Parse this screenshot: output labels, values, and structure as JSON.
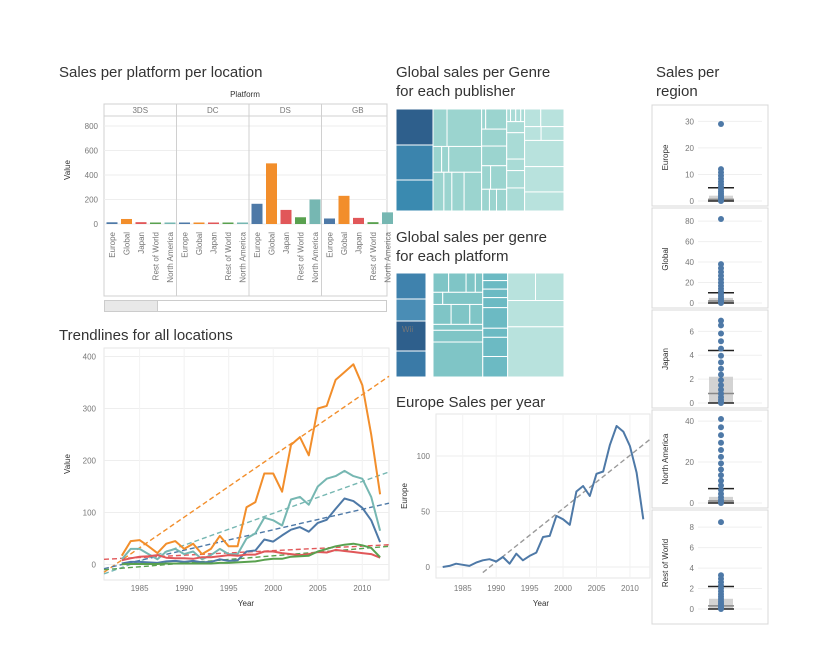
{
  "titles": {
    "bar": "Sales per platform per location",
    "tm1": "Global sales per Genre\nfor each publisher",
    "tm2": "Global sales per genre\nfor each platform",
    "trend": "Trendlines for all locations",
    "europe": "Europe Sales per year",
    "region": "Sales per\nregion"
  },
  "colors": {
    "Europe": "#4e79a7",
    "Global": "#f28e2b",
    "Japan": "#e15759",
    "Rest of World": "#59a14f",
    "North America": "#76b7b2"
  },
  "chart_data": [
    {
      "type": "bar",
      "title": "Sales per platform per location",
      "group_label": "Platform",
      "ylabel": "Value",
      "ylim": [
        0,
        800
      ],
      "yticks": [
        0,
        200,
        400,
        600,
        800
      ],
      "groups": [
        "3DS",
        "DC",
        "DS",
        "GB"
      ],
      "categories": [
        "Europe",
        "Global",
        "Japan",
        "Rest of World",
        "North America"
      ],
      "series": [
        {
          "name": "3DS",
          "values": [
            14,
            41,
            15,
            4,
            12
          ]
        },
        {
          "name": "DC",
          "values": [
            2,
            8,
            6,
            0.5,
            1
          ]
        },
        {
          "name": "DS",
          "values": [
            165,
            495,
            115,
            55,
            200
          ]
        },
        {
          "name": "GB",
          "values": [
            45,
            230,
            50,
            15,
            95
          ]
        }
      ]
    },
    {
      "type": "line",
      "title": "Trendlines for all locations",
      "xlabel": "Year",
      "ylabel": "Value",
      "xlim": [
        1981,
        2013
      ],
      "ylim": [
        -15,
        400
      ],
      "xticks": [
        1985,
        1990,
        1995,
        2000,
        2005,
        2010
      ],
      "yticks": [
        0,
        100,
        200,
        300,
        400
      ],
      "x": [
        1983,
        1984,
        1985,
        1986,
        1987,
        1988,
        1989,
        1990,
        1991,
        1992,
        1993,
        1994,
        1995,
        1996,
        1997,
        1998,
        1999,
        2000,
        2001,
        2002,
        2003,
        2004,
        2005,
        2006,
        2007,
        2008,
        2009,
        2010,
        2011,
        2012
      ],
      "series": [
        {
          "name": "Global",
          "values": [
            17,
            45,
            47,
            35,
            22,
            40,
            45,
            30,
            40,
            20,
            30,
            55,
            35,
            35,
            110,
            120,
            175,
            175,
            140,
            230,
            245,
            210,
            300,
            305,
            355,
            370,
            385,
            345,
            250,
            135
          ],
          "trend": [
            [
              1981,
              -15
            ],
            [
              2013,
              362
            ]
          ]
        },
        {
          "name": "North America",
          "values": [
            10,
            30,
            30,
            20,
            10,
            25,
            30,
            20,
            25,
            10,
            18,
            30,
            20,
            20,
            50,
            60,
            90,
            85,
            75,
            125,
            130,
            115,
            150,
            165,
            170,
            180,
            170,
            165,
            130,
            65
          ],
          "trend": [
            [
              1981,
              -18
            ],
            [
              2013,
              178
            ]
          ]
        },
        {
          "name": "Europe",
          "values": [
            2,
            5,
            5,
            4,
            3,
            6,
            7,
            5,
            7,
            4,
            5,
            10,
            7,
            8,
            25,
            27,
            48,
            44,
            56,
            67,
            72,
            63,
            80,
            86,
            107,
            127,
            122,
            109,
            85,
            43
          ],
          "trend": [
            [
              1981,
              -8
            ],
            [
              2013,
              118
            ]
          ]
        },
        {
          "name": "Japan",
          "values": [
            8,
            12,
            15,
            16,
            18,
            13,
            12,
            12,
            11,
            14,
            14,
            16,
            18,
            17,
            19,
            19,
            25,
            25,
            22,
            20,
            18,
            20,
            24,
            23,
            28,
            26,
            24,
            22,
            20,
            13
          ],
          "trend": [
            [
              1981,
              10
            ],
            [
              2013,
              38
            ]
          ]
        },
        {
          "name": "Rest of World",
          "values": [
            0.5,
            1,
            1,
            1,
            1,
            2,
            2,
            2,
            2,
            2,
            2,
            3,
            3,
            4,
            5,
            6,
            9,
            11,
            11,
            15,
            16,
            17,
            25,
            30,
            35,
            38,
            40,
            37,
            32,
            14
          ],
          "trend": [
            [
              1981,
              -10
            ],
            [
              2013,
              35
            ]
          ]
        }
      ]
    },
    {
      "type": "line",
      "title": "Europe Sales per year",
      "xlabel": "Year",
      "ylabel": "Europe",
      "xlim": [
        1981,
        2013
      ],
      "ylim": [
        -5,
        135
      ],
      "xticks": [
        1985,
        1990,
        1995,
        2000,
        2005,
        2010
      ],
      "yticks": [
        0,
        50,
        100
      ],
      "x": [
        1982,
        1983,
        1984,
        1985,
        1986,
        1987,
        1988,
        1989,
        1990,
        1991,
        1992,
        1993,
        1994,
        1995,
        1996,
        1997,
        1998,
        1999,
        2000,
        2001,
        2002,
        2003,
        2004,
        2005,
        2006,
        2007,
        2008,
        2009,
        2010,
        2011,
        2012
      ],
      "series": [
        {
          "name": "Europe",
          "values": [
            0,
            1,
            3,
            2,
            1,
            4,
            6,
            7,
            5,
            9,
            3,
            12,
            6,
            10,
            13,
            27,
            28,
            46,
            43,
            38,
            68,
            73,
            64,
            84,
            86,
            110,
            127,
            122,
            109,
            85,
            43
          ],
          "trend": [
            [
              1988,
              -5
            ],
            [
              2013,
              115
            ]
          ]
        }
      ]
    },
    {
      "type": "scatter",
      "title": "Sales per region",
      "panels": [
        {
          "name": "Europe",
          "ylim": [
            0,
            32
          ],
          "yticks": [
            0,
            10,
            20,
            30
          ],
          "max_point": 29,
          "median": 0.6,
          "q3": 2,
          "ref_upper": 5,
          "dense_to": 12
        },
        {
          "name": "Global",
          "ylim": [
            0,
            84
          ],
          "yticks": [
            0,
            20,
            40,
            60,
            80
          ],
          "max_point": 82,
          "median": 2,
          "q3": 5,
          "ref_upper": 10,
          "dense_to": 38
        },
        {
          "name": "Japan",
          "ylim": [
            0,
            7.2
          ],
          "yticks": [
            0,
            2,
            4,
            6
          ],
          "max_point": 6.9,
          "median": 0.8,
          "q3": 2.2,
          "ref_upper": 4.4,
          "dense_to": 6.5
        },
        {
          "name": "North America",
          "ylim": [
            0,
            42
          ],
          "yticks": [
            0,
            20,
            40
          ],
          "max_point": 41,
          "median": 1,
          "q3": 3,
          "ref_upper": 7,
          "dense_to": 37
        },
        {
          "name": "Rest of World",
          "ylim": [
            0,
            8.8
          ],
          "yticks": [
            0,
            2,
            4,
            6,
            8
          ],
          "max_point": 8.5,
          "median": 0.3,
          "q3": 1,
          "ref_upper": 2.2,
          "dense_to": 3.3
        }
      ]
    }
  ],
  "treemap1": {
    "labels": []
  },
  "treemap2": {
    "labels": [
      "Wii"
    ]
  }
}
